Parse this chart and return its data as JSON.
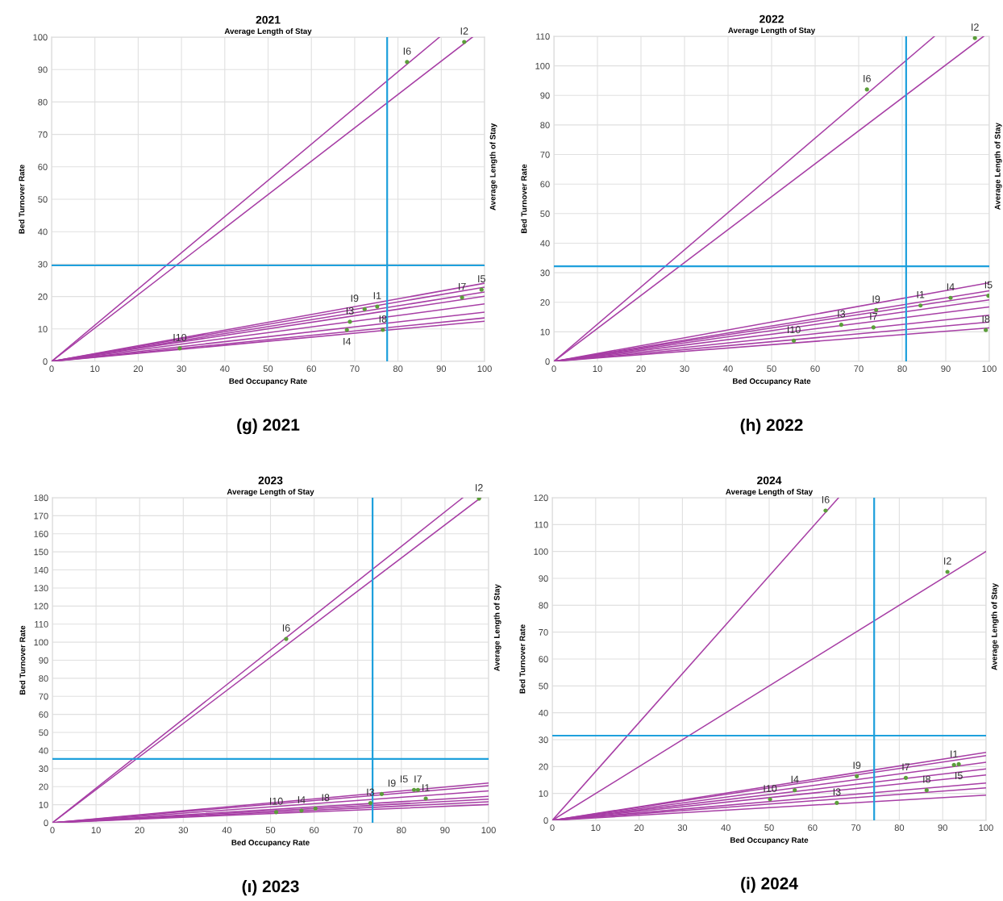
{
  "chart_data": [
    {
      "type": "scatter",
      "title": "2021",
      "subtitle": "Average Length of Stay",
      "xlabel": "Bed Occupancy Rate",
      "ylabel": "Bed Turnover Rate",
      "y2label": "Average Length of Stay",
      "xlim": [
        0,
        100
      ],
      "ylim": [
        0,
        100
      ],
      "xticks": [
        0,
        10,
        20,
        30,
        40,
        50,
        60,
        70,
        80,
        90,
        100
      ],
      "yticks": [
        0,
        10,
        20,
        30,
        40,
        50,
        60,
        70,
        80,
        90,
        100
      ],
      "grid": true,
      "line_style": "solid",
      "series": [
        {
          "type": "line",
          "color": "#a73ea5",
          "x": [
            0,
            89.6
          ],
          "values": [
            0,
            100
          ]
        },
        {
          "type": "line",
          "color": "#a73ea5",
          "x": [
            0,
            97.2
          ],
          "values": [
            0,
            100
          ]
        },
        {
          "type": "line",
          "color": "#a73ea5",
          "x": [
            0,
            100
          ],
          "values": [
            0,
            24.1
          ]
        },
        {
          "type": "line",
          "color": "#a73ea5",
          "x": [
            0,
            100
          ],
          "values": [
            0,
            22.9
          ]
        },
        {
          "type": "line",
          "color": "#a73ea5",
          "x": [
            0,
            100
          ],
          "values": [
            0,
            21.4
          ]
        },
        {
          "type": "line",
          "color": "#a73ea5",
          "x": [
            0,
            100
          ],
          "values": [
            0,
            20.1
          ]
        },
        {
          "type": "line",
          "color": "#a73ea5",
          "x": [
            0,
            100
          ],
          "values": [
            0,
            17.7
          ]
        },
        {
          "type": "line",
          "color": "#a73ea5",
          "x": [
            0,
            100
          ],
          "values": [
            0,
            15.2
          ]
        },
        {
          "type": "line",
          "color": "#a73ea5",
          "x": [
            0,
            100
          ],
          "values": [
            0,
            13.4
          ]
        },
        {
          "type": "line",
          "color": "#a73ea5",
          "x": [
            0,
            100
          ],
          "values": [
            0,
            12.4
          ]
        },
        {
          "marker": "circle",
          "color": "#5b9e3a",
          "x": [
            75.2,
            95.3,
            68.9,
            68.2,
            99.3,
            82.1,
            94.8,
            76.5,
            72.3,
            29.6
          ],
          "values": [
            16.9,
            98.5,
            12.2,
            9.7,
            22.1,
            92.3,
            19.7,
            9.7,
            16.1,
            4.0
          ]
        }
      ],
      "ref_lines": [
        {
          "axis": "y",
          "value": 29.6,
          "color": "#1fa0dc"
        },
        {
          "axis": "x",
          "value": 77.5,
          "color": "#1fa0dc"
        }
      ],
      "annotations": [
        {
          "text": "I1",
          "x": 75.2,
          "y": 16.9
        },
        {
          "text": "I2",
          "x": 95.3,
          "y": 98.5
        },
        {
          "text": "I3",
          "x": 68.9,
          "y": 12.2
        },
        {
          "text": "I4",
          "x": 68.2,
          "y": 9.7
        },
        {
          "text": "I5",
          "x": 99.3,
          "y": 22.1
        },
        {
          "text": "I6",
          "x": 82.1,
          "y": 92.3
        },
        {
          "text": "I7",
          "x": 94.8,
          "y": 19.7
        },
        {
          "text": "I8",
          "x": 76.5,
          "y": 9.7
        },
        {
          "text": "I9",
          "x": 72.3,
          "y": 16.1
        },
        {
          "text": "I10",
          "x": 29.6,
          "y": 4.0
        },
        "(g) 2021"
      ]
    },
    {
      "type": "scatter",
      "title": "2022",
      "subtitle": "Average Length of Stay",
      "xlabel": "Bed Occupancy Rate",
      "ylabel": "Bed Turnover Rate",
      "y2label": "Average Length of Stay",
      "xlim": [
        0,
        100
      ],
      "ylim": [
        0,
        110
      ],
      "xticks": [
        0,
        10,
        20,
        30,
        40,
        50,
        60,
        70,
        80,
        90,
        100
      ],
      "yticks": [
        0,
        10,
        20,
        30,
        40,
        50,
        60,
        70,
        80,
        90,
        100,
        110
      ],
      "grid": true,
      "line_style": "solid",
      "series": [
        {
          "type": "line",
          "color": "#a73ea5",
          "x": [
            0,
            87.4
          ],
          "values": [
            0,
            110
          ]
        },
        {
          "type": "line",
          "color": "#a73ea5",
          "x": [
            0,
            98.7
          ],
          "values": [
            0,
            110
          ]
        },
        {
          "type": "line",
          "color": "#a73ea5",
          "x": [
            0,
            100
          ],
          "values": [
            0,
            26.6
          ]
        },
        {
          "type": "line",
          "color": "#a73ea5",
          "x": [
            0,
            100
          ],
          "values": [
            0,
            23.9
          ]
        },
        {
          "type": "line",
          "color": "#a73ea5",
          "x": [
            0,
            100
          ],
          "values": [
            0,
            22.6
          ]
        },
        {
          "type": "line",
          "color": "#a73ea5",
          "x": [
            0,
            100
          ],
          "values": [
            0,
            20.8
          ]
        },
        {
          "type": "line",
          "color": "#a73ea5",
          "x": [
            0,
            100
          ],
          "values": [
            0,
            18.4
          ]
        },
        {
          "type": "line",
          "color": "#a73ea5",
          "x": [
            0,
            100
          ],
          "values": [
            0,
            15.6
          ]
        },
        {
          "type": "line",
          "color": "#a73ea5",
          "x": [
            0,
            100
          ],
          "values": [
            0,
            13.3
          ]
        },
        {
          "type": "line",
          "color": "#a73ea5",
          "x": [
            0,
            100
          ],
          "values": [
            0,
            11.3
          ]
        },
        {
          "marker": "circle",
          "color": "#5b9e3a",
          "x": [
            84.2,
            96.7,
            66.0,
            91.1,
            99.8,
            71.9,
            73.4,
            99.2,
            74.0,
            55.1
          ],
          "values": [
            18.9,
            109.4,
            12.4,
            21.5,
            22.2,
            92.0,
            11.5,
            10.6,
            17.4,
            7.0
          ]
        }
      ],
      "ref_lines": [
        {
          "axis": "y",
          "value": 32.2,
          "color": "#1fa0dc"
        },
        {
          "axis": "x",
          "value": 80.9,
          "color": "#1fa0dc"
        }
      ],
      "annotations": [
        {
          "text": "I1",
          "x": 84.2,
          "y": 18.9
        },
        {
          "text": "I2",
          "x": 96.7,
          "y": 109.4
        },
        {
          "text": "I3",
          "x": 66.0,
          "y": 12.4
        },
        {
          "text": "I4",
          "x": 91.1,
          "y": 21.5
        },
        {
          "text": "I5",
          "x": 99.8,
          "y": 22.2
        },
        {
          "text": "I6",
          "x": 71.9,
          "y": 92.0
        },
        {
          "text": "I7",
          "x": 73.4,
          "y": 11.5
        },
        {
          "text": "I8",
          "x": 99.2,
          "y": 10.6
        },
        {
          "text": "I9",
          "x": 74.0,
          "y": 17.4
        },
        {
          "text": "I10",
          "x": 55.1,
          "y": 7.0
        },
        "(h) 2022"
      ]
    },
    {
      "type": "scatter",
      "title": "2023",
      "subtitle": "Average Length of Stay",
      "xlabel": "Bed Occupancy Rate",
      "ylabel": "Bed Turnover Rate",
      "y2label": "Average Length of Stay",
      "xlim": [
        0,
        100
      ],
      "ylim": [
        0,
        180
      ],
      "xticks": [
        0,
        10,
        20,
        30,
        40,
        50,
        60,
        70,
        80,
        90,
        100
      ],
      "yticks": [
        0,
        10,
        20,
        30,
        40,
        50,
        60,
        70,
        80,
        90,
        100,
        110,
        120,
        130,
        140,
        150,
        160,
        170,
        180
      ],
      "grid": true,
      "line_style": "solid",
      "series": [
        {
          "type": "line",
          "color": "#a73ea5",
          "x": [
            0,
            94.1
          ],
          "values": [
            0,
            180
          ]
        },
        {
          "type": "line",
          "color": "#a73ea5",
          "x": [
            0,
            98.2
          ],
          "values": [
            0,
            180
          ]
        },
        {
          "type": "line",
          "color": "#a73ea5",
          "x": [
            0,
            100
          ],
          "values": [
            0,
            22.0
          ]
        },
        {
          "type": "line",
          "color": "#a73ea5",
          "x": [
            0,
            100
          ],
          "values": [
            0,
            20.5
          ]
        },
        {
          "type": "line",
          "color": "#a73ea5",
          "x": [
            0,
            100
          ],
          "values": [
            0,
            17.6
          ]
        },
        {
          "type": "line",
          "color": "#a73ea5",
          "x": [
            0,
            100
          ],
          "values": [
            0,
            14.6
          ]
        },
        {
          "type": "line",
          "color": "#a73ea5",
          "x": [
            0,
            100
          ],
          "values": [
            0,
            13.1
          ]
        },
        {
          "type": "line",
          "color": "#a73ea5",
          "x": [
            0,
            100
          ],
          "values": [
            0,
            11.6
          ]
        },
        {
          "type": "line",
          "color": "#a73ea5",
          "x": [
            0,
            100
          ],
          "values": [
            0,
            10.1
          ]
        },
        {
          "marker": "circle",
          "color": "#5b9e3a",
          "x": [
            85.6,
            97.8,
            72.9,
            57.1,
            82.9,
            53.6,
            83.8,
            60.3,
            75.5,
            51.3
          ],
          "values": [
            13.4,
            179.5,
            10.9,
            6.7,
            18.2,
            101.8,
            18.2,
            7.9,
            15.9,
            5.9
          ]
        }
      ],
      "ref_lines": [
        {
          "axis": "y",
          "value": 35.3,
          "color": "#1fa0dc"
        },
        {
          "axis": "x",
          "value": 73.4,
          "color": "#1fa0dc"
        }
      ],
      "annotations": [
        {
          "text": "I1",
          "x": 85.6,
          "y": 13.4
        },
        {
          "text": "I2",
          "x": 97.8,
          "y": 179.5
        },
        {
          "text": "I3",
          "x": 72.9,
          "y": 10.9
        },
        {
          "text": "I4",
          "x": 57.1,
          "y": 6.7
        },
        {
          "text": "I5",
          "x": 82.9,
          "y": 18.2
        },
        {
          "text": "I6",
          "x": 53.6,
          "y": 101.8
        },
        {
          "text": "I7",
          "x": 83.8,
          "y": 18.2
        },
        {
          "text": "I8",
          "x": 60.3,
          "y": 7.9
        },
        {
          "text": "I9",
          "x": 75.5,
          "y": 15.9
        },
        {
          "text": "I10",
          "x": 51.3,
          "y": 5.9
        },
        "(ı) 2023"
      ]
    },
    {
      "type": "scatter",
      "title": "2024",
      "subtitle": "Average Length of Stay",
      "xlabel": "Bed Occupancy Rate",
      "ylabel": "Bed Turnover Rate",
      "y2label": "Average Length of Stay",
      "xlim": [
        0,
        100
      ],
      "ylim": [
        0,
        120
      ],
      "xticks": [
        0,
        10,
        20,
        30,
        40,
        50,
        60,
        70,
        80,
        90,
        100
      ],
      "yticks": [
        0,
        10,
        20,
        30,
        40,
        50,
        60,
        70,
        80,
        90,
        100,
        110,
        120
      ],
      "grid": true,
      "line_style": "solid",
      "series": [
        {
          "type": "line",
          "color": "#a73ea5",
          "x": [
            0,
            66.0
          ],
          "values": [
            0,
            120
          ]
        },
        {
          "type": "line",
          "color": "#a73ea5",
          "x": [
            0,
            100
          ],
          "values": [
            0,
            100
          ]
        },
        {
          "type": "line",
          "color": "#a73ea5",
          "x": [
            0,
            100
          ],
          "values": [
            0,
            25.3
          ]
        },
        {
          "type": "line",
          "color": "#a73ea5",
          "x": [
            0,
            100
          ],
          "values": [
            0,
            24.1
          ]
        },
        {
          "type": "line",
          "color": "#a73ea5",
          "x": [
            0,
            100
          ],
          "values": [
            0,
            21.6
          ]
        },
        {
          "type": "line",
          "color": "#a73ea5",
          "x": [
            0,
            100
          ],
          "values": [
            0,
            19.1
          ]
        },
        {
          "type": "line",
          "color": "#a73ea5",
          "x": [
            0,
            100
          ],
          "values": [
            0,
            16.9
          ]
        },
        {
          "type": "line",
          "color": "#a73ea5",
          "x": [
            0,
            100
          ],
          "values": [
            0,
            13.9
          ]
        },
        {
          "type": "line",
          "color": "#a73ea5",
          "x": [
            0,
            100
          ],
          "values": [
            0,
            12.1
          ]
        },
        {
          "type": "line",
          "color": "#a73ea5",
          "x": [
            0,
            100
          ],
          "values": [
            0,
            9.4
          ]
        },
        {
          "marker": "circle",
          "color": "#5b9e3a",
          "x": [
            92.6,
            91.1,
            65.6,
            55.9,
            93.7,
            63.0,
            81.5,
            86.3,
            70.2,
            50.2
          ],
          "values": [
            20.6,
            92.4,
            6.5,
            11.2,
            20.9,
            115.2,
            15.8,
            11.2,
            16.4,
            7.8
          ]
        }
      ],
      "ref_lines": [
        {
          "axis": "y",
          "value": 31.5,
          "color": "#1fa0dc"
        },
        {
          "axis": "x",
          "value": 74.2,
          "color": "#1fa0dc"
        }
      ],
      "annotations": [
        {
          "text": "I1",
          "x": 92.6,
          "y": 20.6
        },
        {
          "text": "I2",
          "x": 91.1,
          "y": 92.4
        },
        {
          "text": "I3",
          "x": 65.6,
          "y": 6.5
        },
        {
          "text": "I4",
          "x": 55.9,
          "y": 11.2
        },
        {
          "text": "I5",
          "x": 93.7,
          "y": 20.9
        },
        {
          "text": "I6",
          "x": 63.0,
          "y": 115.2
        },
        {
          "text": "I7",
          "x": 81.5,
          "y": 15.8
        },
        {
          "text": "I8",
          "x": 86.3,
          "y": 11.2
        },
        {
          "text": "I9",
          "x": 70.2,
          "y": 16.4
        },
        {
          "text": "I10",
          "x": 50.2,
          "y": 7.8
        },
        "(i) 2024"
      ]
    }
  ]
}
